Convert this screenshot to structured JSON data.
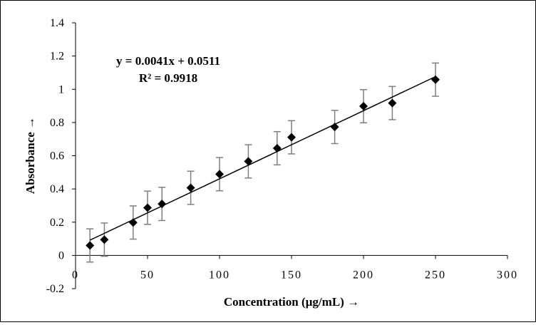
{
  "chart_data": {
    "type": "scatter",
    "title": "",
    "xlabel": "Concentration (µg/mL) →",
    "ylabel": "Absorbance →",
    "xlim": [
      0,
      300
    ],
    "ylim": [
      -0.2,
      1.4
    ],
    "x_ticks": [
      0,
      50,
      100,
      150,
      200,
      250,
      300
    ],
    "x_tick_labels": [
      "0",
      "50",
      "100",
      "150",
      "200",
      "250",
      "300"
    ],
    "y_ticks": [
      -0.2,
      0,
      0.2,
      0.4,
      0.6,
      0.8,
      1,
      1.2,
      1.4
    ],
    "y_tick_labels": [
      "-0.2",
      "0",
      "0.2",
      "0.4",
      "0.6",
      "0.8",
      "1",
      "1.2",
      "1.4"
    ],
    "grid": false,
    "marker": "diamond",
    "marker_color": "#000000",
    "error_bar_color": "#7f7f7f",
    "error_bar": 0.1,
    "series": [
      {
        "x": [
          10,
          20,
          40,
          50,
          60,
          80,
          100,
          120,
          140,
          150,
          180,
          200,
          220,
          250
        ],
        "y": [
          0.06,
          0.095,
          0.198,
          0.287,
          0.31,
          0.407,
          0.489,
          0.566,
          0.645,
          0.711,
          0.773,
          0.898,
          0.917,
          1.058
        ]
      }
    ],
    "trendline": {
      "type": "linear",
      "slope": 0.0041,
      "intercept": 0.0511,
      "x_range": [
        10,
        250
      ],
      "color": "#000000",
      "equation": "y = 0.0041x + 0.0511",
      "r_squared": "R² = 0.9918"
    }
  }
}
